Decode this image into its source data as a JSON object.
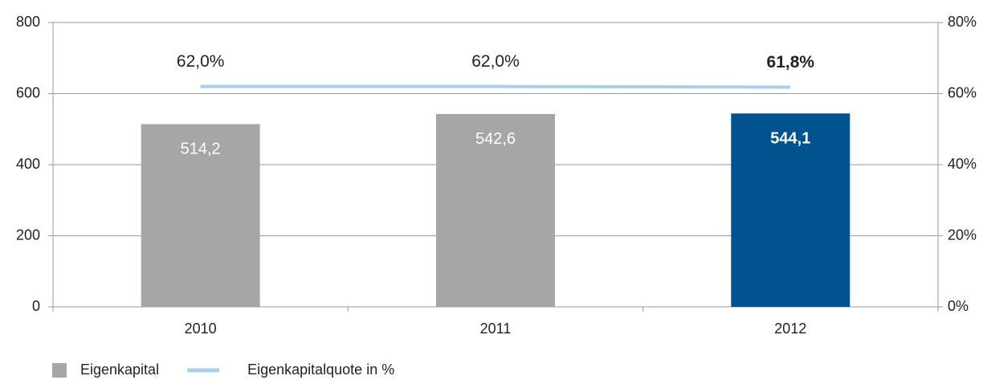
{
  "chart_data": {
    "type": "bar",
    "categories": [
      "2010",
      "2011",
      "2012"
    ],
    "series": [
      {
        "name": "Eigenkapital",
        "color": "#a6a6a8",
        "colors": [
          "#a6a6a8",
          "#a6a6a8",
          "#00538f"
        ],
        "values": [
          514.2,
          542.6,
          544.1
        ],
        "value_labels": [
          "514,2",
          "542,6",
          "544,1"
        ]
      },
      {
        "name": "Eigenkapitalquote in %",
        "type": "line",
        "axis": "y2",
        "color": "#a9cfea",
        "values": [
          62.0,
          62.0,
          61.8
        ],
        "value_labels": [
          "62,0%",
          "62,0%",
          "61,8%"
        ]
      }
    ],
    "ylim": [
      0,
      800
    ],
    "yticks": [
      0,
      200,
      400,
      600,
      800
    ],
    "y2lim": [
      0,
      80
    ],
    "y2ticks": [
      {
        "value": 0,
        "label": "0%"
      },
      {
        "value": 20,
        "label": "20%"
      },
      {
        "value": 40,
        "label": "40%"
      },
      {
        "value": 60,
        "label": "60%"
      },
      {
        "value": 80,
        "label": "80%"
      }
    ],
    "grid": true,
    "legend": "bottom-left"
  }
}
